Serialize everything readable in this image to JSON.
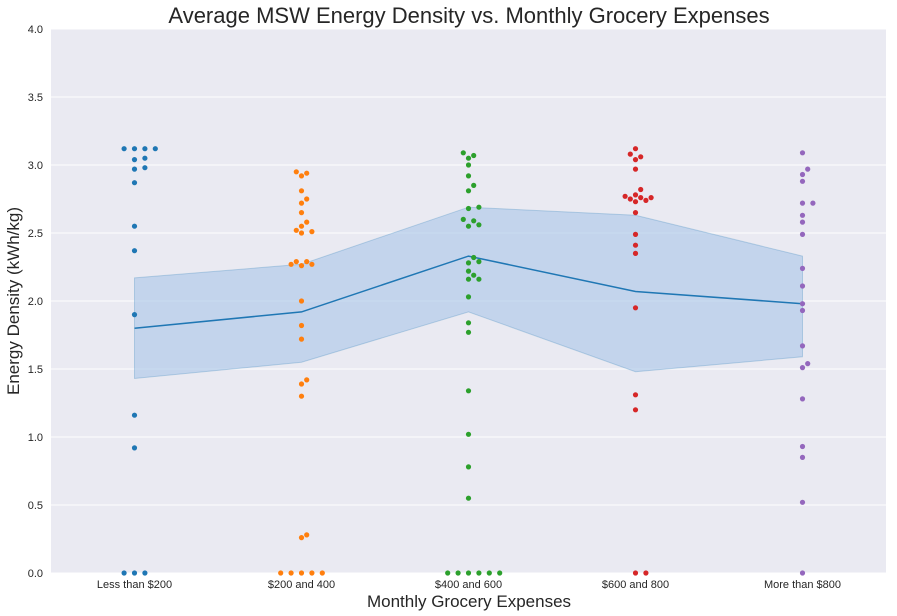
{
  "chart_data": {
    "type": "scatter",
    "title": "Average MSW Energy Density vs. Monthly Grocery Expenses",
    "xlabel": "Monthly Grocery Expenses",
    "ylabel": "Energy Density (kWh/kg)",
    "categories": [
      "Less than $200",
      "$200 and 400",
      "$400 and 600",
      "$600 and 800",
      "More than $800"
    ],
    "ylim": [
      0,
      4.0
    ],
    "yticks": [
      "0.0",
      "0.5",
      "1.0",
      "1.5",
      "2.0",
      "2.5",
      "3.0",
      "3.5",
      "4.0"
    ],
    "grid": true,
    "colors": {
      "background": "#eaeaf2",
      "grid": "#ffffff",
      "mean_line": "#1f77b4",
      "ci_band": "#aec7e8",
      "points": [
        "#1f77b4",
        "#ff7f0e",
        "#2ca02c",
        "#d62728",
        "#9467bd"
      ]
    },
    "points": [
      [
        3.12,
        3.12,
        3.12,
        3.12,
        3.05,
        3.04,
        2.98,
        2.97,
        2.87,
        2.55,
        2.37,
        1.9,
        1.16,
        0.92,
        0,
        0,
        0
      ],
      [
        2.95,
        2.94,
        2.92,
        2.81,
        2.75,
        2.72,
        2.65,
        2.58,
        2.55,
        2.52,
        2.51,
        2.5,
        2.29,
        2.29,
        2.27,
        2.27,
        2.26,
        2.0,
        1.82,
        1.72,
        1.42,
        1.39,
        1.3,
        0.28,
        0.26,
        0,
        0,
        0,
        0,
        0
      ],
      [
        3.09,
        3.07,
        3.05,
        3.0,
        2.92,
        2.85,
        2.81,
        2.69,
        2.68,
        2.6,
        2.59,
        2.56,
        2.55,
        2.32,
        2.29,
        2.28,
        2.22,
        2.19,
        2.16,
        2.16,
        2.03,
        1.84,
        1.77,
        1.34,
        1.02,
        0.78,
        0.55,
        0,
        0,
        0,
        0,
        0,
        0
      ],
      [
        3.12,
        3.08,
        3.06,
        3.04,
        2.97,
        2.82,
        2.78,
        2.77,
        2.76,
        2.76,
        2.75,
        2.74,
        2.73,
        2.65,
        2.49,
        2.41,
        2.35,
        1.95,
        1.31,
        1.2,
        0,
        0
      ],
      [
        3.09,
        2.97,
        2.93,
        2.88,
        2.72,
        2.72,
        2.63,
        2.58,
        2.49,
        2.24,
        2.11,
        1.98,
        1.93,
        1.67,
        1.54,
        1.51,
        1.28,
        0.93,
        0.85,
        0.52,
        0
      ]
    ],
    "mean": [
      1.8,
      1.92,
      2.33,
      2.07,
      1.98
    ],
    "ci_low": [
      1.43,
      1.55,
      1.92,
      1.48,
      1.59
    ],
    "ci_high": [
      2.17,
      2.27,
      2.69,
      2.63,
      2.33
    ]
  }
}
